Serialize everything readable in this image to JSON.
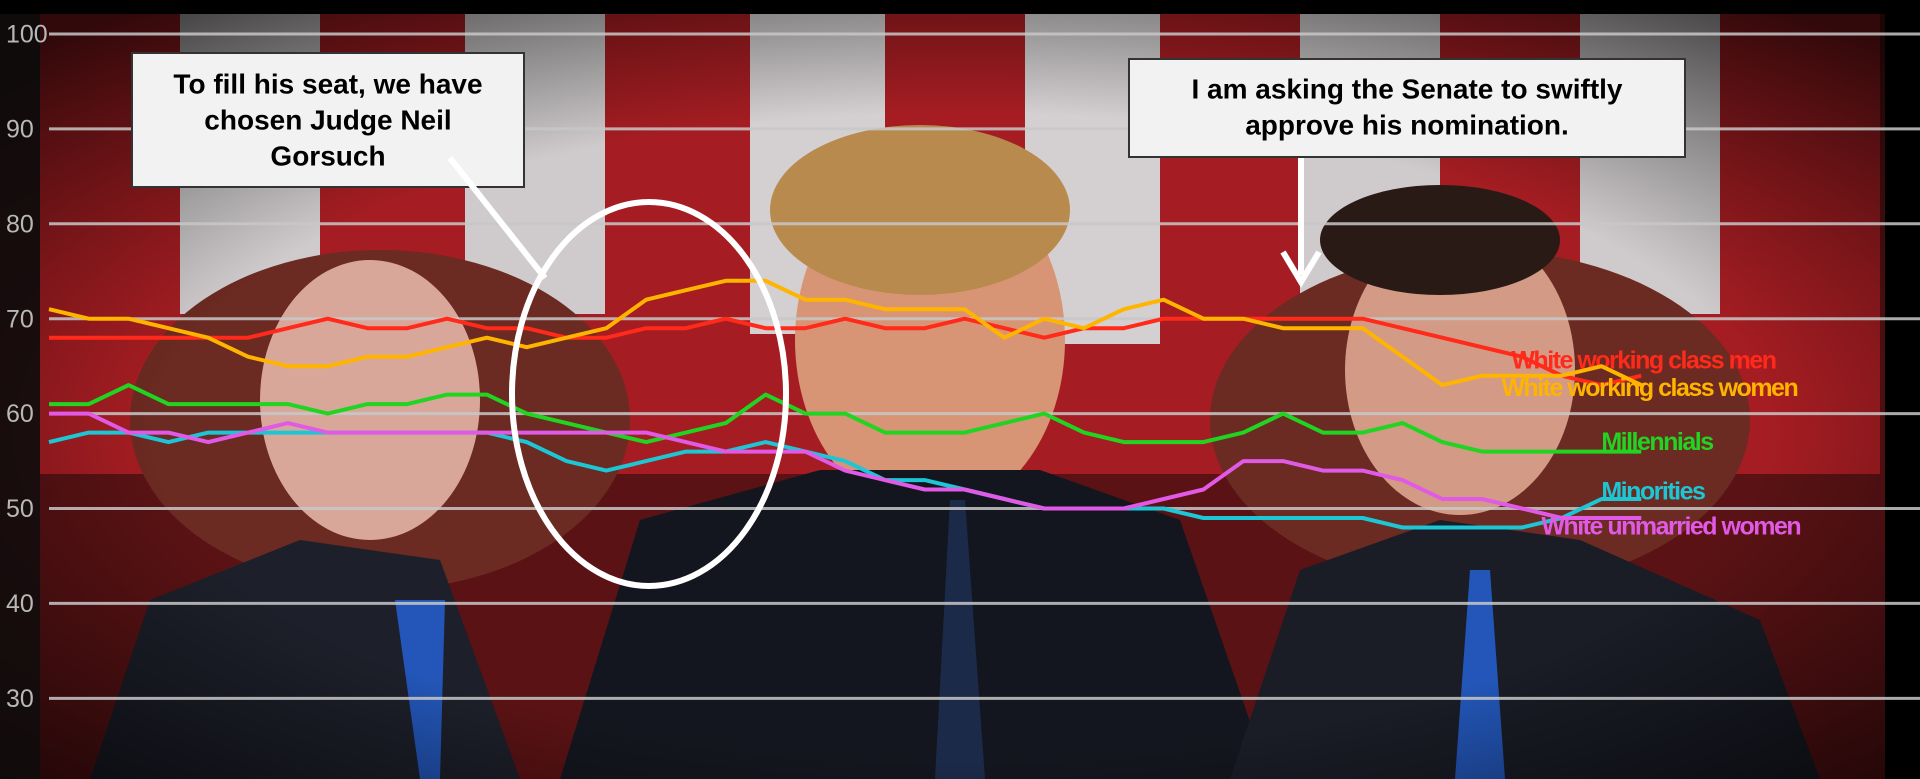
{
  "chart_data": {
    "type": "line",
    "x": [
      0,
      1,
      2,
      3,
      4,
      5,
      6,
      7,
      8,
      9,
      10,
      11,
      12,
      13,
      14,
      15,
      16,
      17,
      18,
      19,
      20,
      21,
      22,
      23,
      24,
      25,
      26,
      27,
      28,
      29,
      30,
      31,
      32,
      33,
      34,
      35,
      36,
      37,
      38,
      39,
      40
    ],
    "xlim": [
      0,
      47
    ],
    "ylim": [
      21.5,
      100
    ],
    "yticks": [
      100,
      90,
      80,
      70,
      60,
      50,
      40,
      30
    ],
    "grid": true,
    "series": [
      {
        "name": "White working class men",
        "color": "#ff2a1a",
        "values": [
          68,
          68,
          68,
          68,
          68,
          68,
          69,
          70,
          69,
          69,
          70,
          69,
          69,
          68,
          68,
          69,
          69,
          70,
          69,
          69,
          70,
          69,
          69,
          70,
          69,
          68,
          69,
          69,
          70,
          70,
          70,
          70,
          70,
          70,
          69,
          68,
          67,
          66,
          64,
          63,
          64
        ]
      },
      {
        "name": "White working class women",
        "color": "#ffb400",
        "values": [
          71,
          70,
          70,
          69,
          68,
          66,
          65,
          65,
          66,
          66,
          67,
          68,
          67,
          68,
          69,
          72,
          73,
          74,
          74,
          72,
          72,
          71,
          71,
          71,
          68,
          70,
          69,
          71,
          72,
          70,
          70,
          69,
          69,
          69,
          66,
          63,
          64,
          64,
          64,
          65,
          63
        ]
      },
      {
        "name": "Millennials",
        "color": "#22d422",
        "values": [
          61,
          61,
          63,
          61,
          61,
          61,
          61,
          60,
          61,
          61,
          62,
          62,
          60,
          59,
          58,
          57,
          58,
          59,
          62,
          60,
          60,
          58,
          58,
          58,
          59,
          60,
          58,
          57,
          57,
          57,
          58,
          60,
          58,
          58,
          59,
          57,
          56,
          56,
          56,
          56,
          56
        ]
      },
      {
        "name": "Minorities",
        "color": "#1cc6d4",
        "values": [
          57,
          58,
          58,
          57,
          58,
          58,
          58,
          58,
          58,
          58,
          58,
          58,
          57,
          55,
          54,
          55,
          56,
          56,
          57,
          56,
          55,
          53,
          53,
          52,
          51,
          50,
          50,
          50,
          50,
          49,
          49,
          49,
          49,
          49,
          48,
          48,
          48,
          48,
          49,
          51,
          51
        ]
      },
      {
        "name": "White unmarried women",
        "color": "#e05ae6",
        "values": [
          60,
          60,
          58,
          58,
          57,
          58,
          59,
          58,
          58,
          58,
          58,
          58,
          58,
          58,
          58,
          58,
          57,
          56,
          56,
          56,
          54,
          53,
          52,
          52,
          51,
          50,
          50,
          50,
          51,
          52,
          55,
          55,
          54,
          54,
          53,
          51,
          51,
          50,
          49,
          49,
          49
        ]
      }
    ],
    "annotations": [
      [
        "To fill his seat, we have",
        "chosen Judge Neil",
        "Gorsuch"
      ],
      [
        "I am asking the Senate to swiftly",
        "approve his nomination."
      ]
    ]
  }
}
